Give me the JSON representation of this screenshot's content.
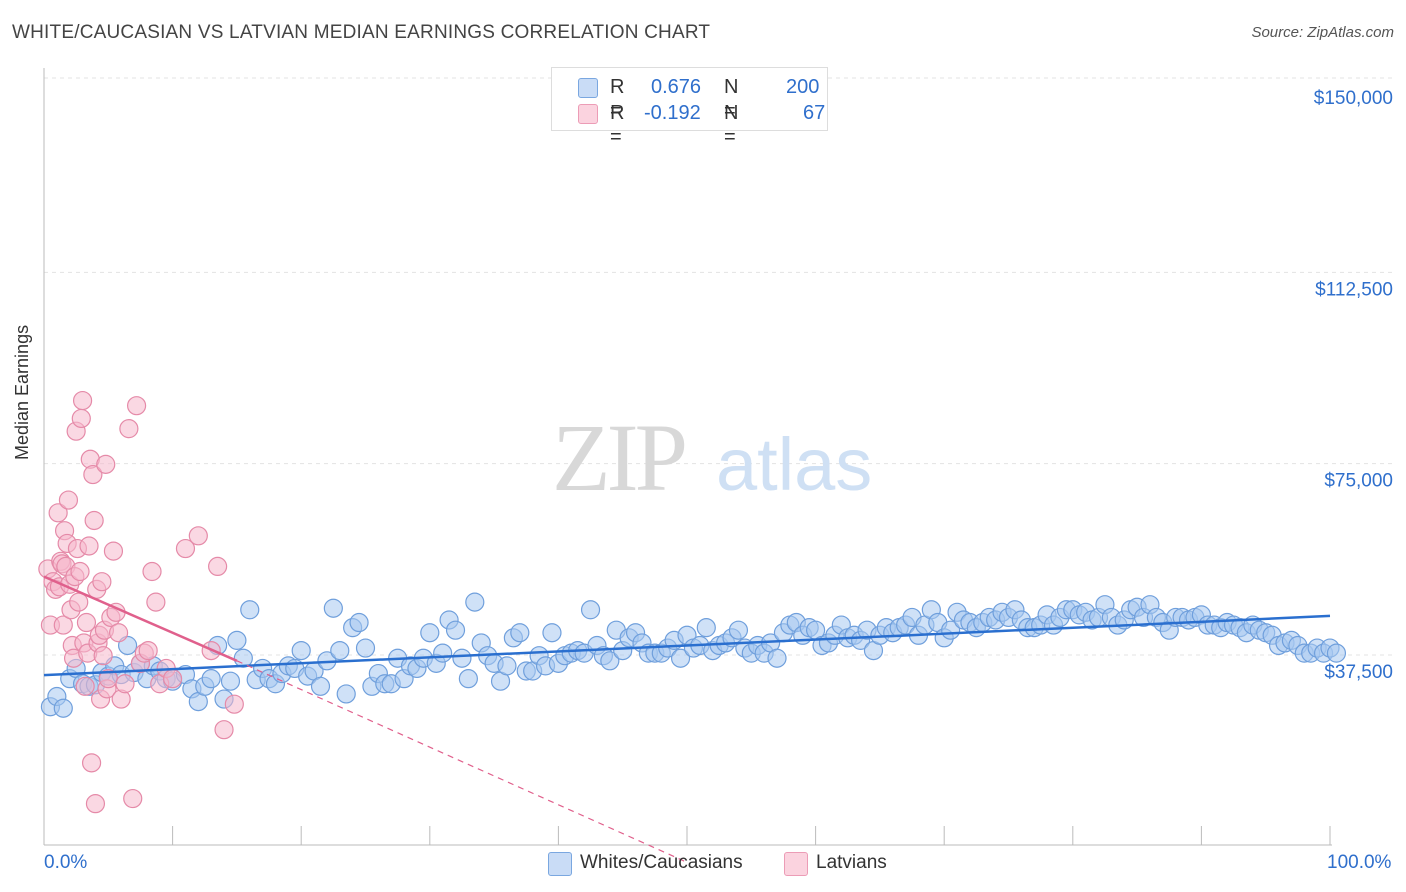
{
  "title": "WHITE/CAUCASIAN VS LATVIAN MEDIAN EARNINGS CORRELATION CHART",
  "source": "Source: ZipAtlas.com",
  "watermark": {
    "zip": "ZIP",
    "atlas": "atlas"
  },
  "legend_top": {
    "rows": [
      {
        "r_label": "R =",
        "r_value": "0.676",
        "n_label": "N =",
        "n_value": "200",
        "color": "#a8c8f0"
      },
      {
        "r_label": "R =",
        "r_value": "-0.192",
        "n_label": "N =",
        "n_value": "67",
        "color": "#f6b8cc"
      }
    ]
  },
  "bottom_legend": [
    {
      "label": "Whites/Caucasians",
      "color": "#a8c8f0"
    },
    {
      "label": "Latvians",
      "color": "#f6b8cc"
    }
  ],
  "chart_data": {
    "type": "scatter",
    "title": "WHITE/CAUCASIAN VS LATVIAN MEDIAN EARNINGS CORRELATION CHART",
    "xlabel": "",
    "ylabel": "Median Earnings",
    "xlim": [
      0,
      100
    ],
    "ylim": [
      0,
      152000
    ],
    "x_tick_labels": {
      "min": "0.0%",
      "max": "100.0%"
    },
    "y_ticks": [
      {
        "value": 37500,
        "label": "$37,500"
      },
      {
        "value": 75000,
        "label": "$75,000"
      },
      {
        "value": 112500,
        "label": "$112,500"
      },
      {
        "value": 150000,
        "label": "$150,000"
      }
    ],
    "grid": true,
    "colors": {
      "whites_fill": "#a8c8f0",
      "whites_stroke": "#6f9fdc",
      "whites_line": "#2a6fcf",
      "latvians_fill": "#f6b8cc",
      "latvians_stroke": "#e58aa8",
      "latvians_line": "#e0608c",
      "tick_label": "#2f6fcc",
      "grid": "#e3e3e3"
    },
    "series": [
      {
        "name": "Whites/Caucasians",
        "trend": {
          "x0": 0,
          "y0": 36700,
          "x1": 100,
          "y1": 48300
        },
        "points": [
          [
            0.5,
            30500
          ],
          [
            1.0,
            32500
          ],
          [
            1.5,
            30200
          ],
          [
            2.0,
            36000
          ],
          [
            2.5,
            38000
          ],
          [
            3.0,
            35000
          ],
          [
            3.5,
            34500
          ],
          [
            4.0,
            34800
          ],
          [
            4.5,
            37200
          ],
          [
            5.0,
            36500
          ],
          [
            5.5,
            38500
          ],
          [
            6.0,
            36800
          ],
          [
            6.5,
            42500
          ],
          [
            7.0,
            37200
          ],
          [
            7.5,
            39000
          ],
          [
            8.0,
            36000
          ],
          [
            8.5,
            38500
          ],
          [
            9.0,
            37500
          ],
          [
            9.5,
            36000
          ],
          [
            10.0,
            35500
          ],
          [
            11.0,
            36800
          ],
          [
            11.5,
            34000
          ],
          [
            12.0,
            31500
          ],
          [
            12.5,
            34500
          ],
          [
            13.0,
            36000
          ],
          [
            13.5,
            42500
          ],
          [
            14.0,
            32000
          ],
          [
            14.5,
            35500
          ],
          [
            15.0,
            43500
          ],
          [
            15.5,
            40000
          ],
          [
            16.0,
            49500
          ],
          [
            16.5,
            35800
          ],
          [
            17.0,
            38000
          ],
          [
            17.5,
            36000
          ],
          [
            18.0,
            35000
          ],
          [
            18.5,
            37000
          ],
          [
            19.0,
            38500
          ],
          [
            19.5,
            38000
          ],
          [
            20.0,
            41500
          ],
          [
            20.5,
            36500
          ],
          [
            21.0,
            37500
          ],
          [
            21.5,
            34500
          ],
          [
            22.0,
            39500
          ],
          [
            22.5,
            49800
          ],
          [
            23.0,
            41500
          ],
          [
            23.5,
            33000
          ],
          [
            24.0,
            46000
          ],
          [
            24.5,
            47000
          ],
          [
            25.0,
            42000
          ],
          [
            25.5,
            34500
          ],
          [
            26.0,
            37000
          ],
          [
            26.5,
            35000
          ],
          [
            27.0,
            35000
          ],
          [
            27.5,
            40000
          ],
          [
            28.0,
            36000
          ],
          [
            28.5,
            38500
          ],
          [
            29.0,
            38000
          ],
          [
            29.5,
            40000
          ],
          [
            30.0,
            45000
          ],
          [
            30.5,
            39000
          ],
          [
            31.0,
            41000
          ],
          [
            31.5,
            47500
          ],
          [
            32.0,
            45500
          ],
          [
            32.5,
            40000
          ],
          [
            33.0,
            36000
          ],
          [
            33.5,
            51000
          ],
          [
            34.0,
            43000
          ],
          [
            34.5,
            40500
          ],
          [
            35.0,
            39000
          ],
          [
            35.5,
            35500
          ],
          [
            36.0,
            38500
          ],
          [
            36.5,
            44000
          ],
          [
            37.0,
            45000
          ],
          [
            37.5,
            37500
          ],
          [
            38.0,
            37500
          ],
          [
            38.5,
            40500
          ],
          [
            39.0,
            38500
          ],
          [
            39.5,
            45000
          ],
          [
            40.0,
            39000
          ],
          [
            40.5,
            40500
          ],
          [
            41.0,
            41000
          ],
          [
            41.5,
            41500
          ],
          [
            42.0,
            41000
          ],
          [
            42.5,
            49500
          ],
          [
            43.0,
            42500
          ],
          [
            43.5,
            40500
          ],
          [
            44.0,
            39500
          ],
          [
            44.5,
            45500
          ],
          [
            45.0,
            41500
          ],
          [
            45.5,
            44000
          ],
          [
            46.0,
            45000
          ],
          [
            46.5,
            43000
          ],
          [
            47.0,
            41000
          ],
          [
            47.5,
            41000
          ],
          [
            48.0,
            41000
          ],
          [
            48.5,
            42000
          ],
          [
            49.0,
            43500
          ],
          [
            49.5,
            40000
          ],
          [
            50.0,
            44500
          ],
          [
            50.5,
            42000
          ],
          [
            51.0,
            42500
          ],
          [
            51.5,
            46000
          ],
          [
            52.0,
            41500
          ],
          [
            52.5,
            42500
          ],
          [
            53.0,
            43000
          ],
          [
            53.5,
            44000
          ],
          [
            54.0,
            45500
          ],
          [
            54.5,
            42000
          ],
          [
            55.0,
            41000
          ],
          [
            55.5,
            42500
          ],
          [
            56.0,
            41000
          ],
          [
            56.5,
            43000
          ],
          [
            57.0,
            40000
          ],
          [
            57.5,
            45000
          ],
          [
            58.0,
            46500
          ],
          [
            58.5,
            47000
          ],
          [
            59.0,
            44500
          ],
          [
            59.5,
            46000
          ],
          [
            60.0,
            45500
          ],
          [
            60.5,
            42500
          ],
          [
            61.0,
            43000
          ],
          [
            61.5,
            44500
          ],
          [
            62.0,
            46500
          ],
          [
            62.5,
            44000
          ],
          [
            63.0,
            44500
          ],
          [
            63.5,
            43500
          ],
          [
            64.0,
            45500
          ],
          [
            64.5,
            41500
          ],
          [
            65.0,
            44500
          ],
          [
            65.5,
            46000
          ],
          [
            66.0,
            45000
          ],
          [
            66.5,
            46000
          ],
          [
            67.0,
            46500
          ],
          [
            67.5,
            48000
          ],
          [
            68.0,
            44500
          ],
          [
            68.5,
            46500
          ],
          [
            69.0,
            49500
          ],
          [
            69.5,
            47000
          ],
          [
            70.0,
            44000
          ],
          [
            70.5,
            45500
          ],
          [
            71.0,
            49000
          ],
          [
            71.5,
            47500
          ],
          [
            72.0,
            47000
          ],
          [
            72.5,
            46000
          ],
          [
            73.0,
            47000
          ],
          [
            73.5,
            48000
          ],
          [
            74.0,
            47500
          ],
          [
            74.5,
            49000
          ],
          [
            75.0,
            48000
          ],
          [
            75.5,
            49500
          ],
          [
            76.0,
            47500
          ],
          [
            76.5,
            46000
          ],
          [
            77.0,
            46000
          ],
          [
            77.5,
            46500
          ],
          [
            78.0,
            48500
          ],
          [
            78.5,
            46500
          ],
          [
            79.0,
            48000
          ],
          [
            79.5,
            49500
          ],
          [
            80.0,
            49500
          ],
          [
            80.5,
            48500
          ],
          [
            81.0,
            49000
          ],
          [
            81.5,
            47500
          ],
          [
            82.0,
            48000
          ],
          [
            82.5,
            50500
          ],
          [
            83.0,
            48000
          ],
          [
            83.5,
            46500
          ],
          [
            84.0,
            47500
          ],
          [
            84.5,
            49500
          ],
          [
            85.0,
            50000
          ],
          [
            85.5,
            48000
          ],
          [
            86.0,
            50500
          ],
          [
            86.5,
            48000
          ],
          [
            87.0,
            47000
          ],
          [
            87.5,
            45500
          ],
          [
            88.0,
            48000
          ],
          [
            88.5,
            48000
          ],
          [
            89.0,
            47500
          ],
          [
            89.5,
            48000
          ],
          [
            90.0,
            48500
          ],
          [
            90.5,
            46500
          ],
          [
            91.0,
            46500
          ],
          [
            91.5,
            46000
          ],
          [
            92.0,
            47000
          ],
          [
            92.5,
            46500
          ],
          [
            93.0,
            46000
          ],
          [
            93.5,
            45000
          ],
          [
            94.0,
            46500
          ],
          [
            94.5,
            45500
          ],
          [
            95.0,
            45000
          ],
          [
            95.5,
            44500
          ],
          [
            96.0,
            42500
          ],
          [
            96.5,
            43000
          ],
          [
            97.0,
            43500
          ],
          [
            97.5,
            42500
          ],
          [
            98.0,
            41000
          ],
          [
            98.5,
            41000
          ],
          [
            99.0,
            42000
          ],
          [
            99.5,
            41000
          ],
          [
            100.0,
            42000
          ],
          [
            100.5,
            41000
          ]
        ]
      },
      {
        "name": "Latvians",
        "trend": {
          "x0": 0,
          "y0": 56000,
          "x1": 15,
          "y1": 39500
        },
        "trend_extension": {
          "x0": 15,
          "y0": 39500,
          "x1": 50,
          "y1": 0
        },
        "points": [
          [
            0.3,
            57500
          ],
          [
            0.5,
            46500
          ],
          [
            0.7,
            55000
          ],
          [
            0.9,
            53500
          ],
          [
            1.1,
            68500
          ],
          [
            1.2,
            54000
          ],
          [
            1.3,
            59000
          ],
          [
            1.4,
            58500
          ],
          [
            1.5,
            46500
          ],
          [
            1.6,
            65000
          ],
          [
            1.7,
            58000
          ],
          [
            1.8,
            62500
          ],
          [
            1.9,
            71000
          ],
          [
            2.0,
            54500
          ],
          [
            2.1,
            49500
          ],
          [
            2.2,
            42500
          ],
          [
            2.3,
            40000
          ],
          [
            2.4,
            56000
          ],
          [
            2.5,
            84500
          ],
          [
            2.6,
            61500
          ],
          [
            2.7,
            51000
          ],
          [
            2.8,
            57000
          ],
          [
            2.9,
            87000
          ],
          [
            3.0,
            90500
          ],
          [
            3.1,
            43000
          ],
          [
            3.2,
            34500
          ],
          [
            3.3,
            47000
          ],
          [
            3.4,
            41000
          ],
          [
            3.5,
            62000
          ],
          [
            3.6,
            79000
          ],
          [
            3.7,
            19500
          ],
          [
            3.8,
            76000
          ],
          [
            3.9,
            67000
          ],
          [
            4.0,
            11500
          ],
          [
            4.1,
            53500
          ],
          [
            4.2,
            43000
          ],
          [
            4.3,
            44500
          ],
          [
            4.4,
            32000
          ],
          [
            4.5,
            55000
          ],
          [
            4.6,
            40500
          ],
          [
            4.7,
            45500
          ],
          [
            4.8,
            78000
          ],
          [
            4.9,
            34000
          ],
          [
            5.0,
            36000
          ],
          [
            5.2,
            48000
          ],
          [
            5.4,
            61000
          ],
          [
            5.6,
            49000
          ],
          [
            5.8,
            45000
          ],
          [
            6.0,
            32000
          ],
          [
            6.3,
            35000
          ],
          [
            6.6,
            85000
          ],
          [
            6.9,
            12500
          ],
          [
            7.2,
            89500
          ],
          [
            7.5,
            39000
          ],
          [
            7.8,
            41000
          ],
          [
            8.1,
            41500
          ],
          [
            8.4,
            57000
          ],
          [
            8.7,
            51000
          ],
          [
            9.0,
            35000
          ],
          [
            9.5,
            38000
          ],
          [
            10.0,
            36000
          ],
          [
            11.0,
            61500
          ],
          [
            12.0,
            64000
          ],
          [
            13.0,
            41500
          ],
          [
            13.5,
            58000
          ],
          [
            14.0,
            26000
          ],
          [
            14.8,
            31000
          ]
        ]
      }
    ]
  }
}
